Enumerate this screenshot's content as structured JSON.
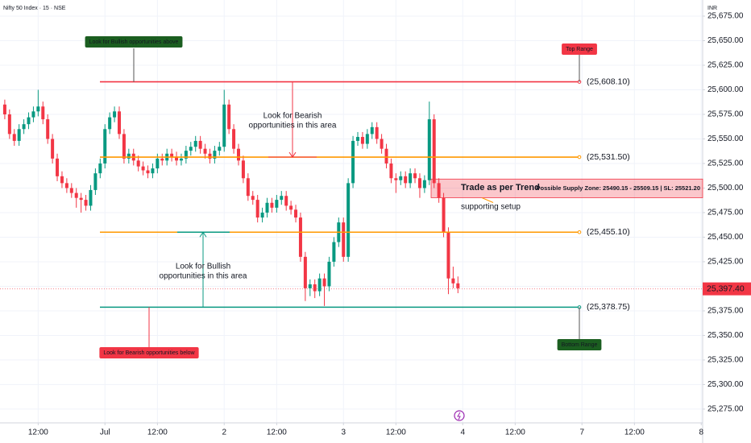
{
  "chart_data": {
    "type": "candlestick",
    "title": "Nifty 50 Index · 15 · NSE",
    "axis_unit": "INR",
    "up_color": "#089981",
    "down_color": "#f23645",
    "x": [
      -21,
      -20,
      -19,
      -18,
      -17,
      -16,
      -15,
      -14,
      -13,
      -12,
      -11,
      -10,
      -9,
      -8,
      -7,
      -6,
      -5,
      -4,
      -3,
      -2,
      -1,
      0,
      1,
      2,
      3,
      4,
      5,
      6,
      7,
      8,
      9,
      10,
      11,
      12,
      13,
      14,
      15,
      16,
      17,
      18,
      19,
      20,
      21,
      22,
      23,
      24,
      25,
      26,
      27,
      28,
      29,
      30,
      31,
      32,
      33,
      34,
      35,
      36,
      37,
      38,
      39,
      40,
      41,
      42,
      43,
      44,
      45,
      46,
      47,
      48,
      49,
      50,
      51,
      52,
      53,
      54,
      55,
      56,
      57,
      58,
      59,
      60,
      61,
      62,
      63,
      64,
      65,
      66,
      67,
      68,
      69,
      70,
      71,
      72,
      73,
      74
    ],
    "open": [
      25585,
      25575,
      25555,
      25548,
      25560,
      25565,
      25572,
      25578,
      25583,
      25570,
      25550,
      25530,
      25512,
      25505,
      25500,
      25495,
      25490,
      25488,
      25482,
      25498,
      25515,
      25525,
      25560,
      25572,
      25578,
      25555,
      25530,
      25535,
      25528,
      25522,
      25518,
      25515,
      25520,
      25530,
      25528,
      25535,
      25532,
      25528,
      25530,
      25538,
      25542,
      25548,
      25540,
      25535,
      25530,
      25538,
      25542,
      25585,
      25560,
      25540,
      25528,
      25510,
      25492,
      25488,
      25470,
      25475,
      25485,
      25480,
      25488,
      25492,
      25482,
      25478,
      25470,
      25430,
      25398,
      25402,
      25395,
      25408,
      25400,
      25425,
      25445,
      25465,
      25430,
      25505,
      25548,
      25552,
      25545,
      25555,
      25562,
      25550,
      25540,
      25525,
      25510,
      25508,
      25512,
      25505,
      25515,
      25510,
      25500,
      25508,
      25570,
      25505,
      25490,
      25455,
      25408,
      25403
    ],
    "high": [
      25590,
      25580,
      25560,
      25565,
      25570,
      25577,
      25583,
      25600,
      25588,
      25575,
      25555,
      25535,
      25517,
      25510,
      25505,
      25500,
      25495,
      25493,
      25503,
      25520,
      25530,
      25565,
      25577,
      25583,
      25583,
      25560,
      25540,
      25540,
      25533,
      25527,
      25523,
      25525,
      25535,
      25535,
      25540,
      25540,
      25537,
      25535,
      25543,
      25547,
      25553,
      25553,
      25545,
      25540,
      25543,
      25547,
      25600,
      25590,
      25565,
      25545,
      25533,
      25515,
      25497,
      25493,
      25480,
      25490,
      25490,
      25493,
      25497,
      25497,
      25487,
      25483,
      25475,
      25435,
      25407,
      25407,
      25413,
      25413,
      25430,
      25450,
      25470,
      25470,
      25510,
      25553,
      25557,
      25557,
      25560,
      25567,
      25567,
      25555,
      25545,
      25530,
      25515,
      25517,
      25517,
      25520,
      25520,
      25515,
      25513,
      25588,
      25575,
      25510,
      25495,
      25460,
      25420,
      25410
    ],
    "low": [
      25570,
      25550,
      25543,
      25543,
      25555,
      25560,
      25567,
      25573,
      25565,
      25545,
      25525,
      25507,
      25500,
      25495,
      25490,
      25480,
      25475,
      25477,
      25477,
      25493,
      25510,
      25520,
      25555,
      25567,
      25550,
      25525,
      25525,
      25523,
      25517,
      25513,
      25510,
      25510,
      25515,
      25523,
      25523,
      25527,
      25523,
      25523,
      25525,
      25533,
      25537,
      25535,
      25530,
      25525,
      25525,
      25533,
      25537,
      25555,
      25535,
      25523,
      25505,
      25487,
      25483,
      25465,
      25465,
      25470,
      25475,
      25475,
      25483,
      25477,
      25473,
      25465,
      25425,
      25385,
      25390,
      25388,
      25390,
      25380,
      25395,
      25420,
      25440,
      25425,
      25425,
      25500,
      25543,
      25540,
      25540,
      25550,
      25545,
      25535,
      25520,
      25505,
      25495,
      25503,
      25500,
      25500,
      25505,
      25490,
      25495,
      25503,
      25500,
      25485,
      25450,
      25392,
      25398,
      25393
    ],
    "close": [
      25575,
      25555,
      25548,
      25560,
      25565,
      25572,
      25578,
      25583,
      25570,
      25550,
      25530,
      25512,
      25505,
      25500,
      25495,
      25490,
      25488,
      25482,
      25498,
      25515,
      25525,
      25560,
      25572,
      25578,
      25555,
      25530,
      25535,
      25528,
      25522,
      25518,
      25515,
      25520,
      25530,
      25528,
      25535,
      25532,
      25528,
      25530,
      25538,
      25542,
      25548,
      25540,
      25535,
      25530,
      25538,
      25542,
      25585,
      25560,
      25540,
      25528,
      25510,
      25492,
      25488,
      25470,
      25475,
      25485,
      25480,
      25488,
      25492,
      25482,
      25478,
      25470,
      25430,
      25398,
      25402,
      25395,
      25408,
      25400,
      25425,
      25445,
      25465,
      25430,
      25505,
      25548,
      25552,
      25545,
      25555,
      25562,
      25550,
      25540,
      25525,
      25510,
      25508,
      25512,
      25505,
      25515,
      25510,
      25500,
      25508,
      25570,
      25505,
      25490,
      25455,
      25408,
      25403,
      25398
    ],
    "xlim": [
      -22,
      125.3
    ],
    "ylim": [
      25261,
      25691.4
    ],
    "xticks": [
      {
        "value": -14,
        "label": "12:00"
      },
      {
        "value": 0,
        "label": "Jul"
      },
      {
        "value": 11,
        "label": "12:00"
      },
      {
        "value": 25,
        "label": "2"
      },
      {
        "value": 36,
        "label": "12:00"
      },
      {
        "value": 50,
        "label": "3"
      },
      {
        "value": 61,
        "label": "12:00"
      },
      {
        "value": 75,
        "label": "4"
      },
      {
        "value": 86,
        "label": "12:00"
      },
      {
        "value": 100,
        "label": "7"
      },
      {
        "value": 111,
        "label": "12:00"
      },
      {
        "value": 125,
        "label": "8"
      }
    ],
    "yticks": [
      {
        "value": 25275,
        "label": "25,275.00"
      },
      {
        "value": 25300,
        "label": "25,300.00"
      },
      {
        "value": 25325,
        "label": "25,325.00"
      },
      {
        "value": 25350,
        "label": "25,350.00"
      },
      {
        "value": 25375,
        "label": "25,375.00"
      },
      {
        "value": 25400,
        "label": "25,400.00"
      },
      {
        "value": 25425,
        "label": "25,425.00"
      },
      {
        "value": 25450,
        "label": "25,450.00"
      },
      {
        "value": 25475,
        "label": "25,475.00"
      },
      {
        "value": 25500,
        "label": "25,500.00"
      },
      {
        "value": 25525,
        "label": "25,525.00"
      },
      {
        "value": 25550,
        "label": "25,550.00"
      },
      {
        "value": 25575,
        "label": "25,575.00"
      },
      {
        "value": 25600,
        "label": "25,600.00"
      },
      {
        "value": 25625,
        "label": "25,625.00"
      },
      {
        "value": 25650,
        "label": "25,650.00"
      },
      {
        "value": 25675,
        "label": "25,675.00"
      }
    ],
    "grid": true,
    "last_price": {
      "value": 25397.4,
      "label": "25,397.40"
    },
    "levels": [
      {
        "value": 25608.1,
        "label": "(25,608.10)",
        "color": "#f23645"
      },
      {
        "value": 25531.5,
        "label": "(25,531.50)",
        "color": "#ff9800"
      },
      {
        "value": 25455.1,
        "label": "(25,455.10)",
        "color": "#ff9800"
      },
      {
        "value": 25378.75,
        "label": "(25,378.75)",
        "color": "#089981"
      }
    ],
    "supply_zone": {
      "low": 25490.15,
      "high": 25509.15,
      "label": "Possible Supply Zone: 25490.15 - 25509.15 | SL: 25521.20"
    },
    "annotations": {
      "bullish_above": "Look for Bullish opportunities above",
      "top_range": "Top Range",
      "bearish_area": [
        "Look for Bearish",
        "opportunities in this area"
      ],
      "bullish_area": [
        "Look for Bullish",
        "opportunities in this area"
      ],
      "bearish_below": "Look for Bearish opportunities below",
      "bottom_range": "Bottom Range",
      "trend": "Trade as per Trend",
      "setup": "supporting setup"
    }
  }
}
